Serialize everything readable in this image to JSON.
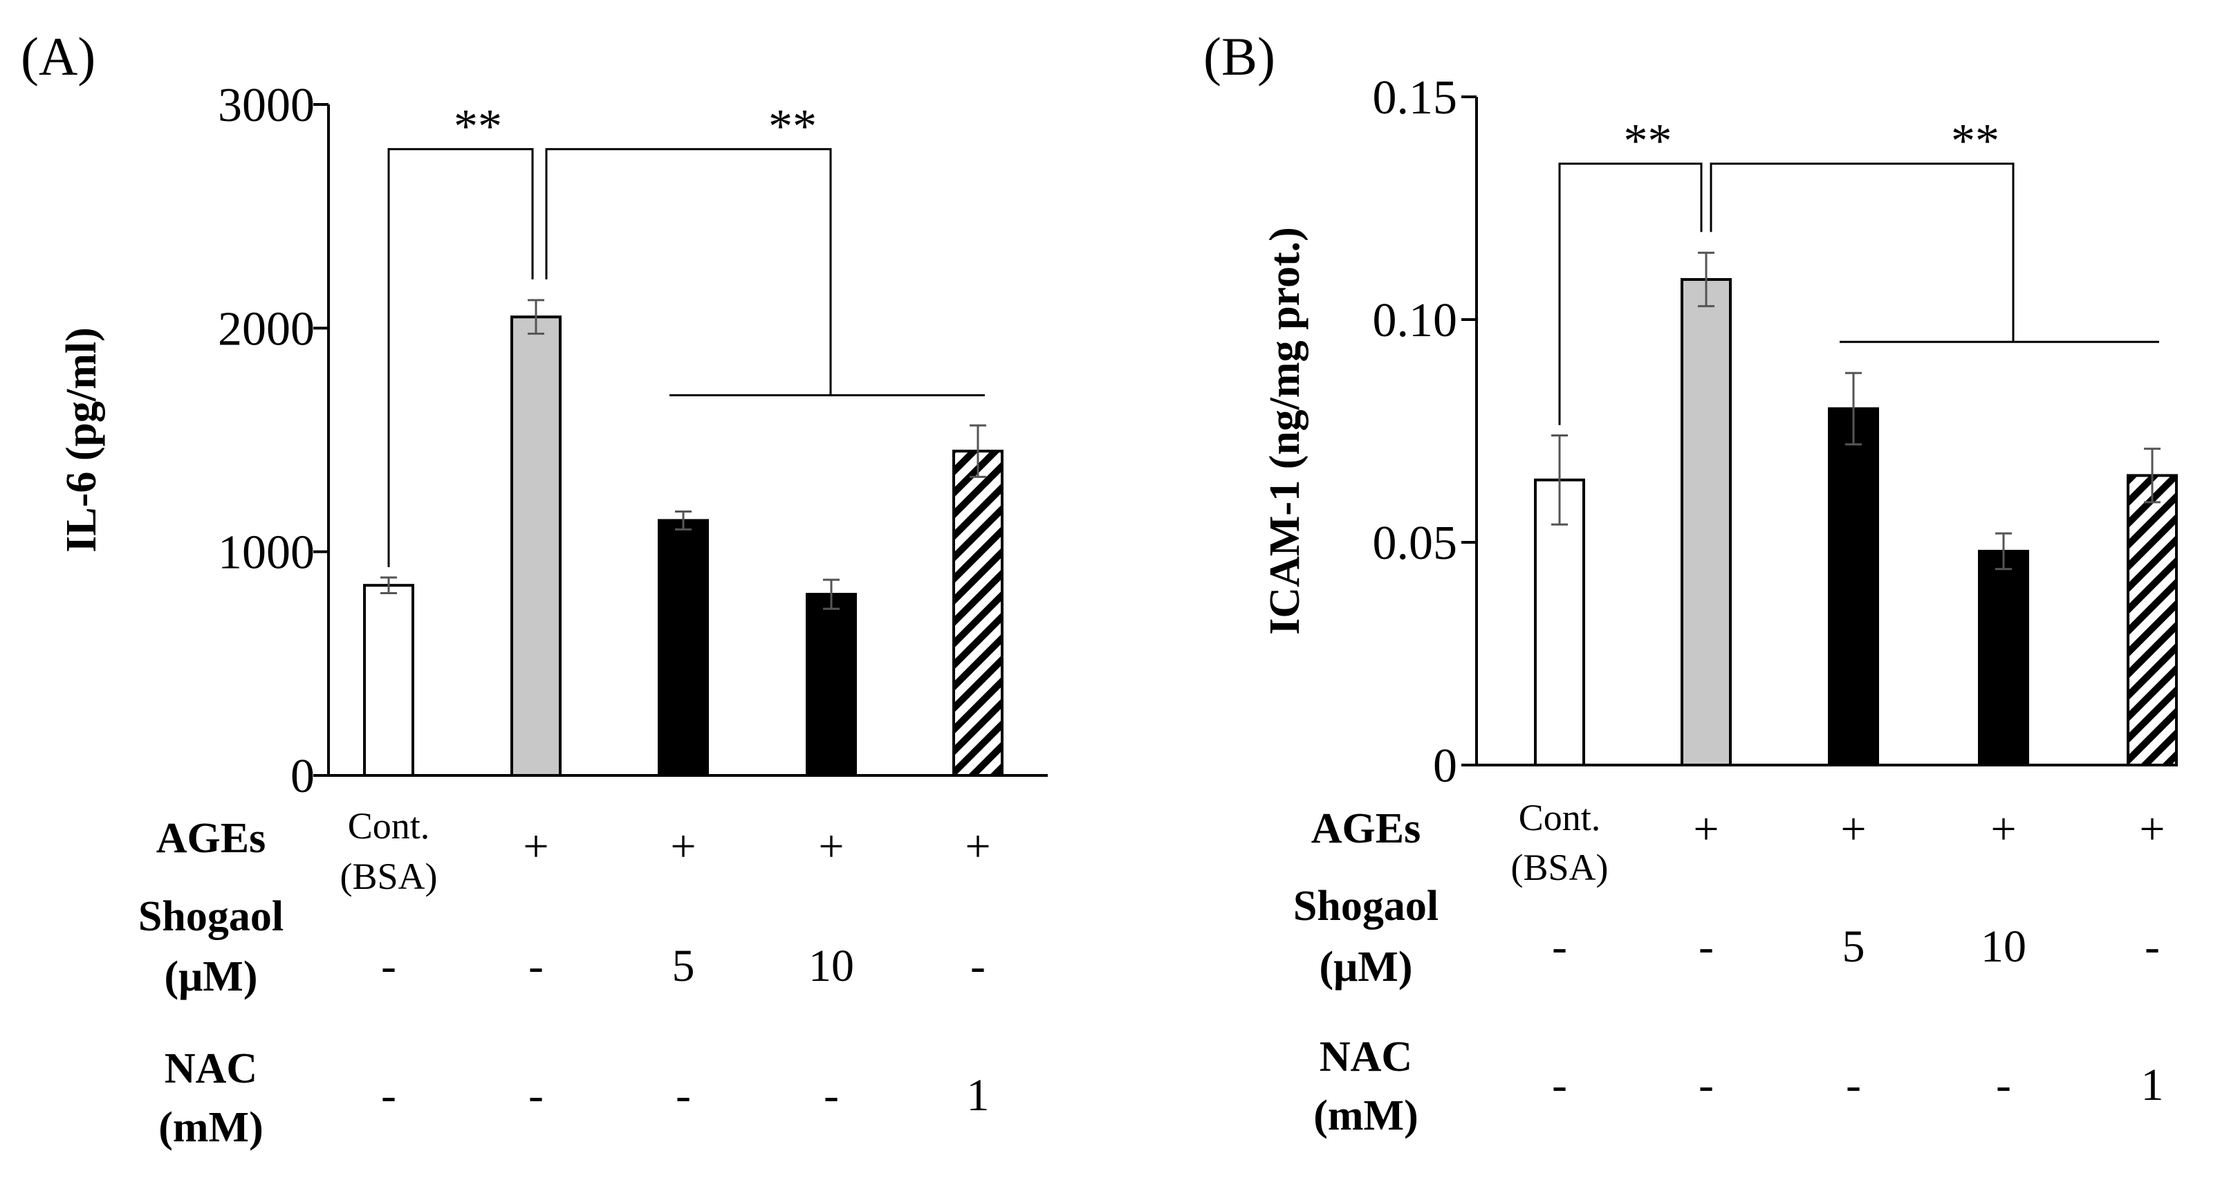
{
  "chart_data": [
    {
      "type": "bar",
      "panel_label": "(A)",
      "ylabel": "IL-6 (pg/ml)",
      "ylim": [
        0,
        3000
      ],
      "yticks": [
        "0",
        "1000",
        "2000",
        "3000"
      ],
      "ytick_values": [
        0,
        1000,
        2000,
        3000
      ],
      "values": [
        850,
        2050,
        1140,
        810,
        1450
      ],
      "errors": [
        35,
        75,
        40,
        65,
        115
      ],
      "fills": [
        "white",
        "#c8c8c8",
        "black",
        "black",
        "hatch"
      ],
      "significance": [
        {
          "label": "**",
          "from": 0,
          "to": 1,
          "level": 2800
        },
        {
          "label": "**",
          "from": 1,
          "to": [
            2,
            4
          ],
          "level": 2800,
          "group_level": 1700
        }
      ],
      "conditions": {
        "rows": [
          {
            "label_lines": [
              "AGEs"
            ],
            "values": [
              "Cont.|(BSA)",
              "+",
              "+",
              "+",
              "+"
            ]
          },
          {
            "label_lines": [
              "Shogaol",
              "(μM)"
            ],
            "values": [
              "-",
              "-",
              "5",
              "10",
              "-"
            ]
          },
          {
            "label_lines": [
              "NAC",
              "(mM)"
            ],
            "values": [
              "-",
              "-",
              "-",
              "-",
              "1"
            ]
          }
        ]
      }
    },
    {
      "type": "bar",
      "panel_label": "(B)",
      "ylabel": "ICAM-1 (ng/mg prot.)",
      "ylim": [
        0,
        0.15
      ],
      "yticks": [
        "0",
        "0.05",
        "0.10",
        "0.15"
      ],
      "ytick_values": [
        0,
        0.05,
        0.1,
        0.15
      ],
      "values": [
        0.064,
        0.109,
        0.08,
        0.048,
        0.065
      ],
      "errors": [
        0.01,
        0.006,
        0.008,
        0.004,
        0.006
      ],
      "fills": [
        "white",
        "#c8c8c8",
        "black",
        "black",
        "hatch"
      ],
      "significance": [
        {
          "label": "**",
          "from": 0,
          "to": 1,
          "level": 0.135
        },
        {
          "label": "**",
          "from": 1,
          "to": [
            2,
            4
          ],
          "level": 0.135,
          "group_level": 0.095
        }
      ],
      "conditions": {
        "rows": [
          {
            "label_lines": [
              "AGEs"
            ],
            "values": [
              "Cont.|(BSA)",
              "+",
              "+",
              "+",
              "+"
            ]
          },
          {
            "label_lines": [
              "Shogaol",
              "(μM)"
            ],
            "values": [
              "-",
              "-",
              "5",
              "10",
              "-"
            ]
          },
          {
            "label_lines": [
              "NAC",
              "(mM)"
            ],
            "values": [
              "-",
              "-",
              "-",
              "-",
              "1"
            ]
          }
        ]
      }
    }
  ]
}
